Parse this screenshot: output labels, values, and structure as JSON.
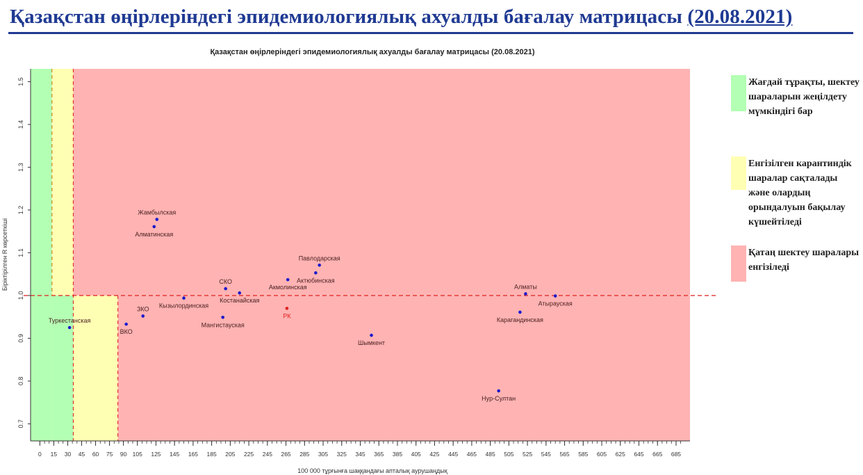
{
  "slide": {
    "title": "Қазақстан өңірлеріндегі эпидемиологиялық ахуалды бағалау матрицасы",
    "date": "(20.08.2021)"
  },
  "chart_data": {
    "type": "scatter",
    "title": "Қазақстан өңірлеріндегі эпидемиологиялық ахуалды бағалау матрицасы  (20.08.2021)",
    "xlabel": "100 000 тұрғынға шаққандағы апталық аурушаңдық",
    "ylabel": "Біріктірілген R көрсеткіші",
    "xlim": [
      -10,
      700
    ],
    "ylim": [
      0.66,
      1.53
    ],
    "x_ticks": [
      0,
      15,
      30,
      45,
      60,
      75,
      90,
      105,
      125,
      145,
      165,
      185,
      205,
      225,
      245,
      265,
      285,
      305,
      325,
      345,
      365,
      385,
      405,
      425,
      445,
      465,
      485,
      505,
      525,
      545,
      565,
      585,
      605,
      625,
      645,
      665,
      685
    ],
    "y_ticks": [
      0.7,
      0.8,
      0.9,
      1.0,
      1.1,
      1.2,
      1.3,
      1.4,
      1.5
    ],
    "zones": [
      {
        "zone": "green",
        "color": "#b3ffb3",
        "x_from": -10,
        "x_to": 13,
        "y_from": 0.66,
        "y_to": 1.53
      },
      {
        "zone": "green",
        "color": "#b3ffb3",
        "x_from": 13,
        "x_to": 36,
        "y_from": 0.66,
        "y_to": 1.0
      },
      {
        "zone": "yellow",
        "color": "#ffffb3",
        "x_from": 13,
        "x_to": 36,
        "y_from": 1.0,
        "y_to": 1.53
      },
      {
        "zone": "yellow",
        "color": "#ffffb3",
        "x_from": 36,
        "x_to": 84,
        "y_from": 0.66,
        "y_to": 1.0
      },
      {
        "zone": "red",
        "color": "#ffb3b3",
        "x_from": 84,
        "x_to": 700,
        "y_from": 0.66,
        "y_to": 1.0
      },
      {
        "zone": "red",
        "color": "#ffb3b3",
        "x_from": 36,
        "x_to": 700,
        "y_from": 1.0,
        "y_to": 1.53
      }
    ],
    "reference_lines": [
      {
        "axis": "y",
        "value": 1.0
      },
      {
        "axis": "x",
        "value": 36
      },
      {
        "axis": "x",
        "value": 84
      },
      {
        "axis": "x",
        "value": 13
      }
    ],
    "points": [
      {
        "label": "Туркестанская",
        "x": 32,
        "y": 0.925,
        "label_pos": "above"
      },
      {
        "label": "ВКО",
        "x": 93,
        "y": 0.933,
        "label_pos": "below"
      },
      {
        "label": "ЗКО",
        "x": 111,
        "y": 0.952,
        "label_pos": "above"
      },
      {
        "label": "Кызылординская",
        "x": 155,
        "y": 0.994,
        "label_pos": "below"
      },
      {
        "label": "Жамбылская",
        "x": 126,
        "y": 1.178,
        "label_pos": "above"
      },
      {
        "label": "Алматинская",
        "x": 123,
        "y": 1.161,
        "label_pos": "below"
      },
      {
        "label": "СКО",
        "x": 200,
        "y": 1.016,
        "label_pos": "above"
      },
      {
        "label": "Костанайская",
        "x": 215,
        "y": 1.006,
        "label_pos": "below"
      },
      {
        "label": "Мангистауская",
        "x": 197,
        "y": 0.949,
        "label_pos": "below"
      },
      {
        "label": "Акмолинская",
        "x": 267,
        "y": 1.037,
        "label_pos": "below"
      },
      {
        "label": "РК",
        "x": 266,
        "y": 0.97,
        "label_pos": "below",
        "color": "#e0201d"
      },
      {
        "label": "Павлодарская",
        "x": 301,
        "y": 1.071,
        "label_pos": "above"
      },
      {
        "label": "Актюбинская",
        "x": 297,
        "y": 1.053,
        "label_pos": "below"
      },
      {
        "label": "Шымкент",
        "x": 357,
        "y": 0.907,
        "label_pos": "below"
      },
      {
        "label": "Алматы",
        "x": 523,
        "y": 1.004,
        "label_pos": "above"
      },
      {
        "label": "Карагандинская",
        "x": 517,
        "y": 0.961,
        "label_pos": "below"
      },
      {
        "label": "Атырауская",
        "x": 555,
        "y": 0.999,
        "label_pos": "below"
      },
      {
        "label": "Нур-Султан",
        "x": 494,
        "y": 0.777,
        "label_pos": "below"
      }
    ],
    "point_color": "#1a1acc",
    "legend": [
      {
        "color": "#b3ffb3",
        "label": "Жағдай тұрақты, шектеу шараларын жеңілдету мүмкіндігі бар"
      },
      {
        "color": "#ffffb3",
        "label": "Енгізілген карантиндік шаралар сақталады және олардың орындалуын бақылау күшейтіледі"
      },
      {
        "color": "#ffb3b3",
        "label": "Қатаң шектеу шаралары енгізіледі"
      }
    ]
  }
}
